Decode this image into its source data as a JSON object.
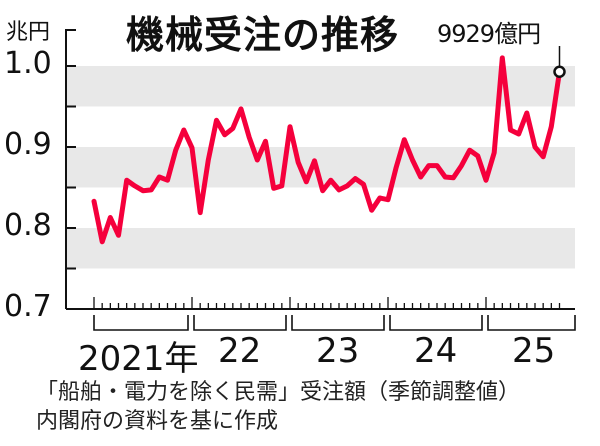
{
  "chart_data": {
    "type": "line",
    "title": "機械受注の推移",
    "ylabel": "兆円",
    "xlabel": "",
    "ylim": [
      0.7,
      1.0
    ],
    "yticks": [
      "1.0",
      "0.9",
      "0.8",
      "0.7"
    ],
    "year_labels": [
      "2021年",
      "22",
      "23",
      "24",
      "25"
    ],
    "grid": "alternating gray bands every 0.05",
    "annotation": {
      "label": "9929億円",
      "point": "last",
      "value": 0.9929
    },
    "line_color": "#f5003c",
    "band_color": "#e8e8e8",
    "x_start": "2021-01",
    "x_end": "2025-10",
    "series": [
      {
        "name": "「船舶・電力を除く民需」受注額（季節調整値）",
        "values": [
          0.833,
          0.783,
          0.813,
          0.791,
          0.859,
          0.852,
          0.846,
          0.847,
          0.863,
          0.859,
          0.896,
          0.921,
          0.899,
          0.819,
          0.884,
          0.933,
          0.915,
          0.923,
          0.947,
          0.912,
          0.884,
          0.907,
          0.849,
          0.852,
          0.925,
          0.881,
          0.857,
          0.883,
          0.846,
          0.859,
          0.847,
          0.852,
          0.861,
          0.854,
          0.822,
          0.837,
          0.835,
          0.875,
          0.909,
          0.884,
          0.863,
          0.877,
          0.877,
          0.863,
          0.862,
          0.877,
          0.896,
          0.889,
          0.859,
          0.893,
          1.01,
          0.921,
          0.916,
          0.942,
          0.9,
          0.888,
          0.925,
          0.9929
        ]
      }
    ]
  },
  "header": {
    "title": "機械受注の推移",
    "unit": "兆円",
    "annotation": "9929億円"
  },
  "axis": {
    "yticks": [
      "1.0",
      "0.9",
      "0.8",
      "0.7"
    ],
    "years": [
      "2021年",
      "22",
      "23",
      "24",
      "25"
    ]
  },
  "footer": {
    "line1": "「船舶・電力を除く民需」受注額（季節調整値）",
    "line2": "内閣府の資料を基に作成"
  }
}
